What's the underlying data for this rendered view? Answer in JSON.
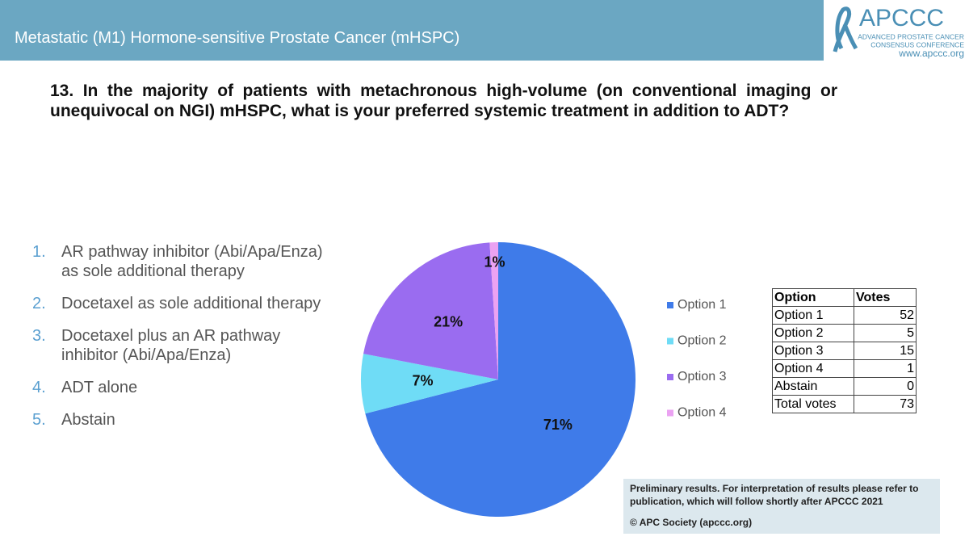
{
  "header": {
    "title": "Metastatic (M1) Hormone-sensitive Prostate Cancer (mHSPC)",
    "logo": {
      "name": "APCCC",
      "line1": "ADVANCED PROSTATE CANCER",
      "line2": "CONSENSUS CONFERENCE",
      "url": "www.apccc.org"
    }
  },
  "question": "13. In the majority of patients with metachronous high-volume (on conventional imaging or unequivocal on NGI) mHSPC, what is your preferred systemic treatment in addition to ADT?",
  "options": [
    {
      "number": "1.",
      "text": "AR pathway inhibitor (Abi/Apa/Enza) as sole additional therapy"
    },
    {
      "number": "2.",
      "text": "Docetaxel as sole additional therapy"
    },
    {
      "number": "3.",
      "text": "Docetaxel plus an AR pathway inhibitor (Abi/Apa/Enza)"
    },
    {
      "number": "4.",
      "text": "ADT alone"
    },
    {
      "number": "5.",
      "text": "Abstain"
    }
  ],
  "chart_data": {
    "type": "pie",
    "categories": [
      "Option 1",
      "Option 2",
      "Option 3",
      "Option 4"
    ],
    "values": [
      71,
      7,
      21,
      1
    ],
    "value_labels": [
      "71%",
      "7%",
      "21%",
      "1%"
    ],
    "colors": [
      "#3f7be9",
      "#6fdcf6",
      "#9a6cf0",
      "#eba2f2"
    ],
    "legend": "right"
  },
  "table": {
    "header": [
      "Option",
      "Votes"
    ],
    "rows": [
      [
        "Option 1",
        52
      ],
      [
        "Option 2",
        5
      ],
      [
        "Option 3",
        15
      ],
      [
        "Option 4",
        1
      ],
      [
        "Abstain",
        0
      ],
      [
        "Total votes",
        73
      ]
    ]
  },
  "footer": {
    "note": "Preliminary results. For interpretation of results please refer to publication, which will follow shortly after APCCC 2021",
    "copyright": "© APC Society (apccc.org)"
  }
}
